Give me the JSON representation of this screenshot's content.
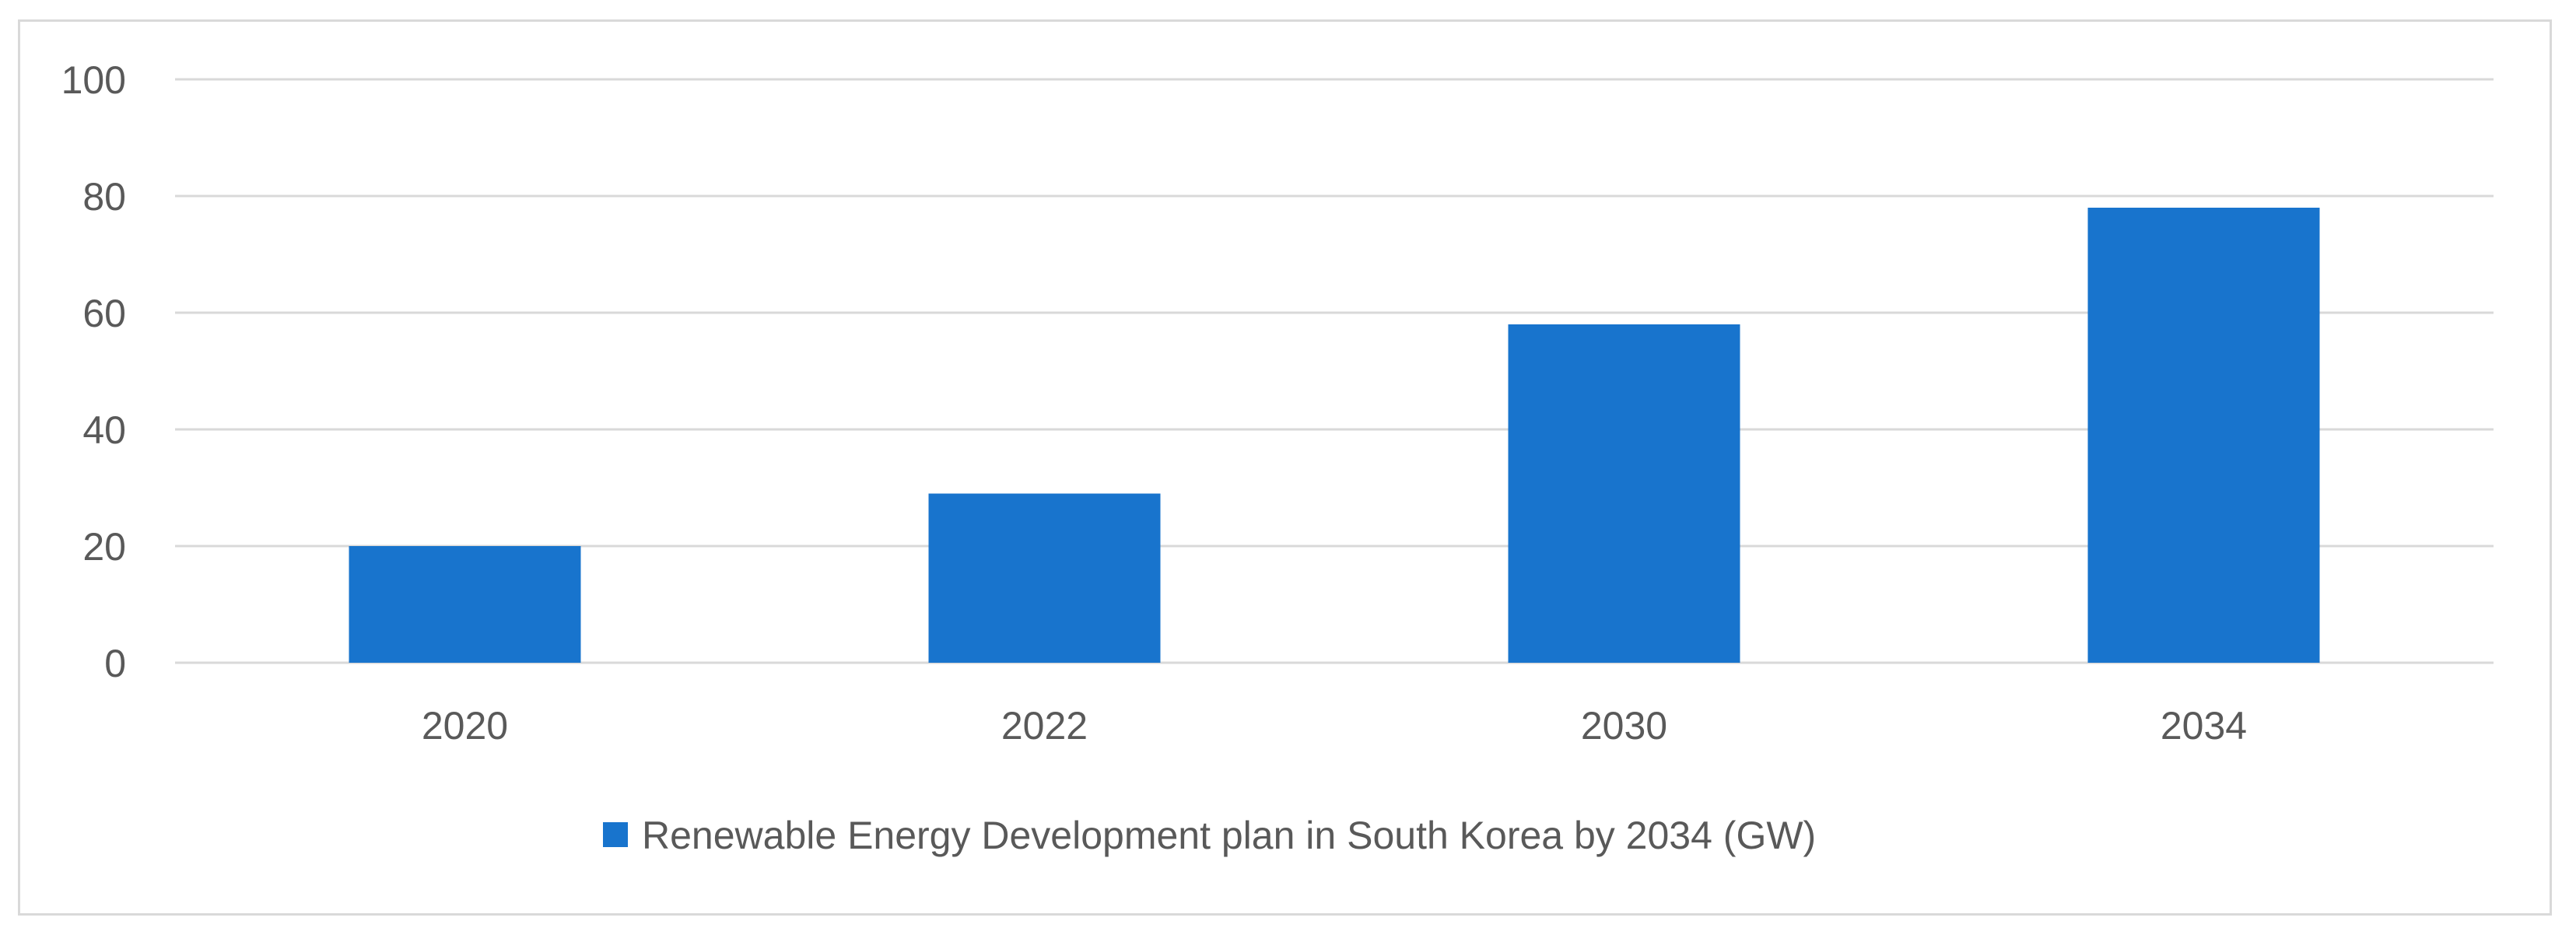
{
  "chart_data": {
    "type": "bar",
    "title": "",
    "xlabel": "",
    "ylabel": "",
    "categories": [
      "2020",
      "2022",
      "2030",
      "2034"
    ],
    "series": [
      {
        "name": "Renewable Energy Development plan in South Korea by 2034 (GW)",
        "values": [
          20,
          29,
          58,
          78
        ],
        "color": "#1874CD"
      }
    ],
    "ylim": [
      0,
      100
    ],
    "yticks": [
      0,
      20,
      40,
      60,
      80,
      100
    ],
    "grid": true,
    "legend_position": "bottom"
  },
  "colors": {
    "bar": "#1874CD",
    "grid": "#d9d9d9",
    "text": "#595959"
  }
}
